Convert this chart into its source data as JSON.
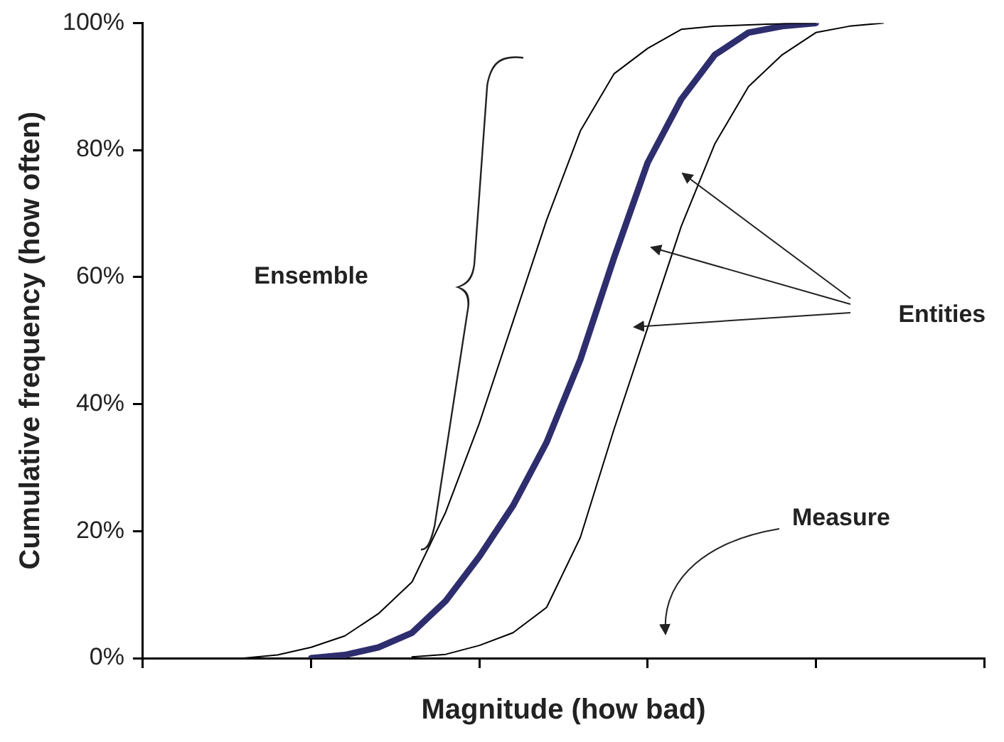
{
  "chart_data": {
    "type": "line",
    "xlabel": "Magnitude (how bad)",
    "ylabel": "Cumulative frequency (how often)",
    "categories": [
      null,
      null,
      null,
      null,
      null,
      null,
      null,
      null,
      null,
      null,
      null,
      null,
      null,
      null,
      null,
      null,
      null,
      null,
      null,
      null,
      null,
      null,
      null,
      null,
      null,
      null
    ],
    "ylim": [
      0,
      100
    ],
    "yticks": [
      {
        "value": 0,
        "label": "0%"
      },
      {
        "value": 20,
        "label": "20%"
      },
      {
        "value": 40,
        "label": "40%"
      },
      {
        "value": 60,
        "label": "60%"
      },
      {
        "value": 80,
        "label": "80%"
      },
      {
        "value": 100,
        "label": "100%"
      }
    ],
    "tick_labels": "y",
    "grid": false,
    "legend": false,
    "marker": "none",
    "annotations": [
      "Ensemble",
      "Entities",
      "Measure"
    ],
    "series": [
      {
        "color": "#000000",
        "values": [
          null,
          null,
          null,
          0,
          0.5,
          1.7,
          3.5,
          7,
          12,
          23,
          37,
          53,
          69,
          83,
          92,
          96,
          99,
          99.5,
          99.7,
          99.9,
          100,
          null,
          null,
          null,
          null,
          null
        ]
      },
      {
        "color": "#2e2e6e",
        "values": [
          null,
          null,
          null,
          null,
          null,
          0,
          0.5,
          1.7,
          4,
          9,
          16,
          24,
          34,
          47,
          63,
          78,
          88,
          95,
          98.5,
          99.5,
          100,
          null,
          null,
          null,
          null,
          null
        ]
      },
      {
        "color": "#000000",
        "values": [
          null,
          null,
          null,
          null,
          null,
          null,
          null,
          null,
          0.2,
          0.6,
          2,
          4,
          8,
          19,
          36,
          52,
          68,
          81,
          90,
          95,
          98.5,
          99.5,
          100,
          null,
          null,
          null
        ]
      }
    ]
  }
}
